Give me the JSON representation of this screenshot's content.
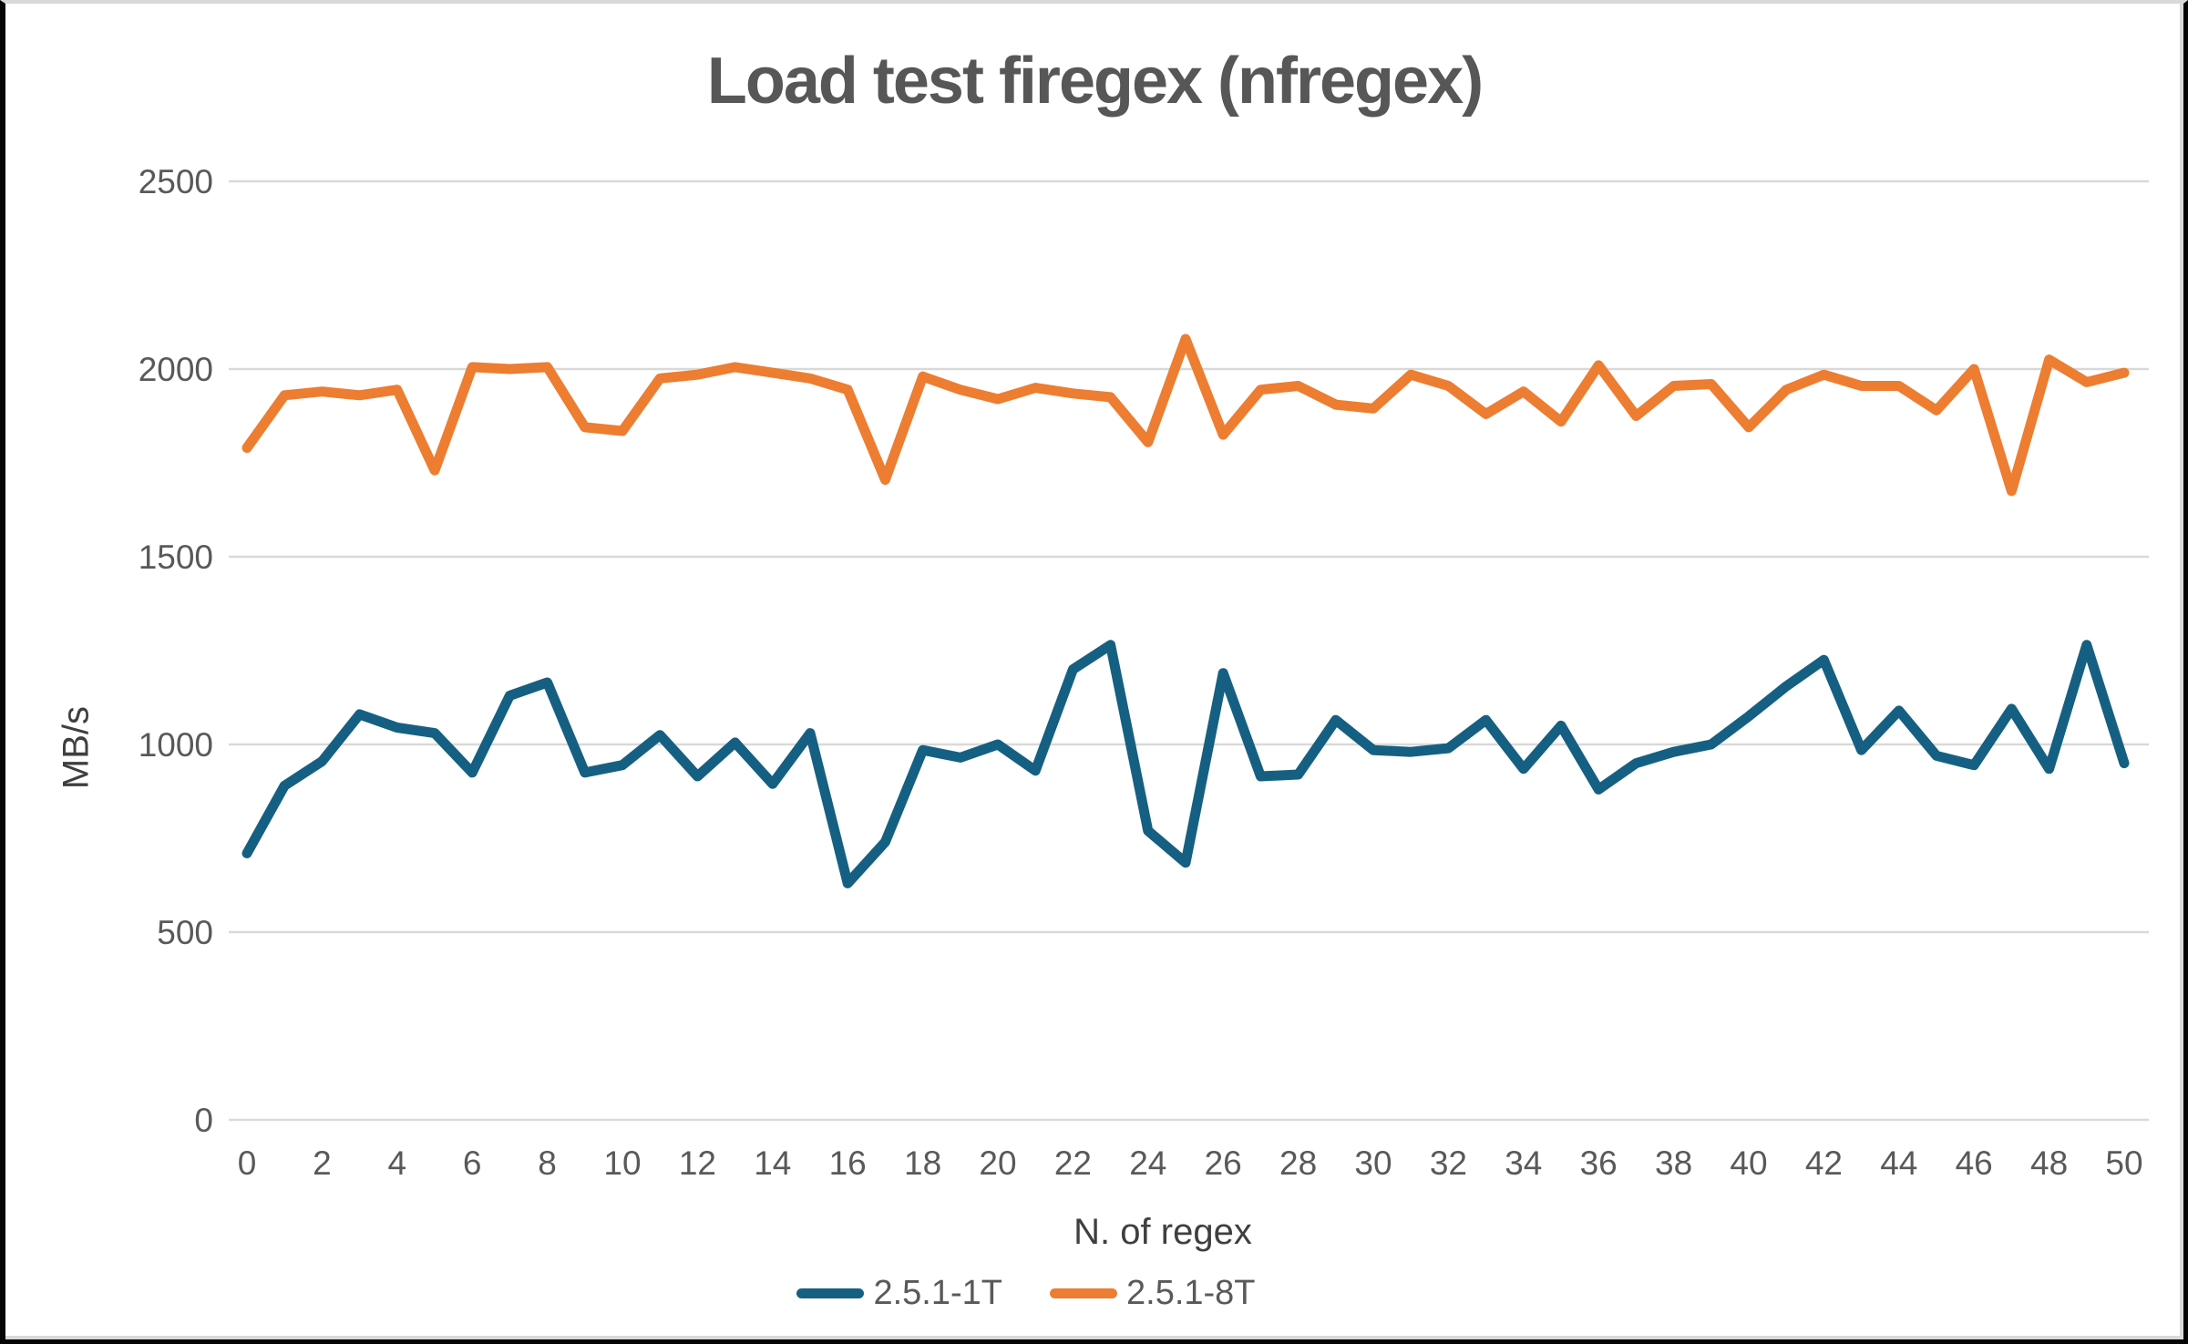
{
  "chart_data": {
    "type": "line",
    "title": "Load test firegex (nfregex)",
    "xlabel": "N. of regex",
    "ylabel": "MB/s",
    "x": [
      0,
      1,
      2,
      3,
      4,
      5,
      6,
      7,
      8,
      9,
      10,
      11,
      12,
      13,
      14,
      15,
      16,
      17,
      18,
      19,
      20,
      21,
      22,
      23,
      24,
      25,
      26,
      27,
      28,
      29,
      30,
      31,
      32,
      33,
      34,
      35,
      36,
      37,
      38,
      39,
      40,
      41,
      42,
      43,
      44,
      45,
      46,
      47,
      48,
      49,
      50
    ],
    "x_tick_step": 2,
    "ylim": [
      0,
      2500
    ],
    "y_tick_step": 500,
    "grid": true,
    "gridline_color": "#d9d9d9",
    "tick_label_color": "#595959",
    "legend_position": "bottom",
    "series": [
      {
        "name": "2.5.1-1T",
        "color": "#156082",
        "values": [
          710,
          890,
          955,
          1080,
          1045,
          1030,
          925,
          1130,
          1165,
          925,
          945,
          1025,
          915,
          1005,
          895,
          1030,
          630,
          740,
          985,
          965,
          1000,
          930,
          1200,
          1265,
          770,
          685,
          1190,
          915,
          920,
          1065,
          985,
          980,
          990,
          1065,
          935,
          1050,
          880,
          950,
          980,
          1000,
          1075,
          1155,
          1225,
          985,
          1090,
          970,
          945,
          1095,
          935,
          1265,
          950
        ]
      },
      {
        "name": "2.5.1-8T",
        "color": "#ED7D31",
        "values": [
          1790,
          1930,
          1940,
          1930,
          1945,
          1730,
          2005,
          2000,
          2005,
          1845,
          1835,
          1975,
          1985,
          2005,
          1990,
          1975,
          1945,
          1705,
          1980,
          1945,
          1920,
          1950,
          1935,
          1925,
          1805,
          2080,
          1825,
          1945,
          1955,
          1905,
          1895,
          1985,
          1955,
          1880,
          1940,
          1860,
          2010,
          1875,
          1955,
          1960,
          1845,
          1945,
          1985,
          1955,
          1955,
          1890,
          2000,
          1675,
          2025,
          1965,
          1990
        ]
      }
    ]
  }
}
